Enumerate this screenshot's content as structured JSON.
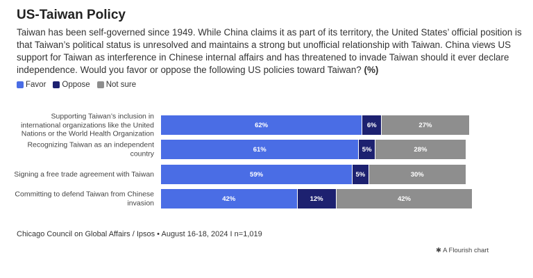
{
  "title": "US-Taiwan Policy",
  "chart_data": {
    "type": "stacked-bar",
    "subtitle": "Taiwan has been self-governed since 1949. While China claims it as part of its territory, the United States’ official position is that Taiwan’s political status is unresolved and maintains a strong but unofficial relationship with Taiwan. China views US support for Taiwan as interference in Chinese internal affairs and has threatened to invade Taiwan should it ever declare independence. Would you favor or oppose the following US policies toward Taiwan?",
    "unit_note": "(%)",
    "categories": [
      "Supporting Taiwan’s inclusion in international organizations like the United Nations or the World Health Organization",
      "Recognizing Taiwan as an independent country",
      "Signing a free trade agreement with Taiwan",
      "Committing to defend Taiwan from Chinese invasion"
    ],
    "series": [
      {
        "name": "Favor",
        "color": "#4a6de5",
        "values": [
          62,
          61,
          59,
          42
        ],
        "value_labels": [
          "62%",
          "61%",
          "59%",
          "42%"
        ]
      },
      {
        "name": "Oppose",
        "color": "#1d2170",
        "values": [
          6,
          5,
          5,
          12
        ],
        "value_labels": [
          "6%",
          "5%",
          "5%",
          "12%"
        ]
      },
      {
        "name": "Not sure",
        "color": "#8e8e8e",
        "values": [
          27,
          28,
          30,
          42
        ],
        "value_labels": [
          "27%",
          "28%",
          "30%",
          "42%"
        ]
      }
    ],
    "source": "Chicago Council on Global Affairs / Ipsos • August 16-18, 2024 I n=1,019"
  },
  "credit": "A Flourish chart"
}
